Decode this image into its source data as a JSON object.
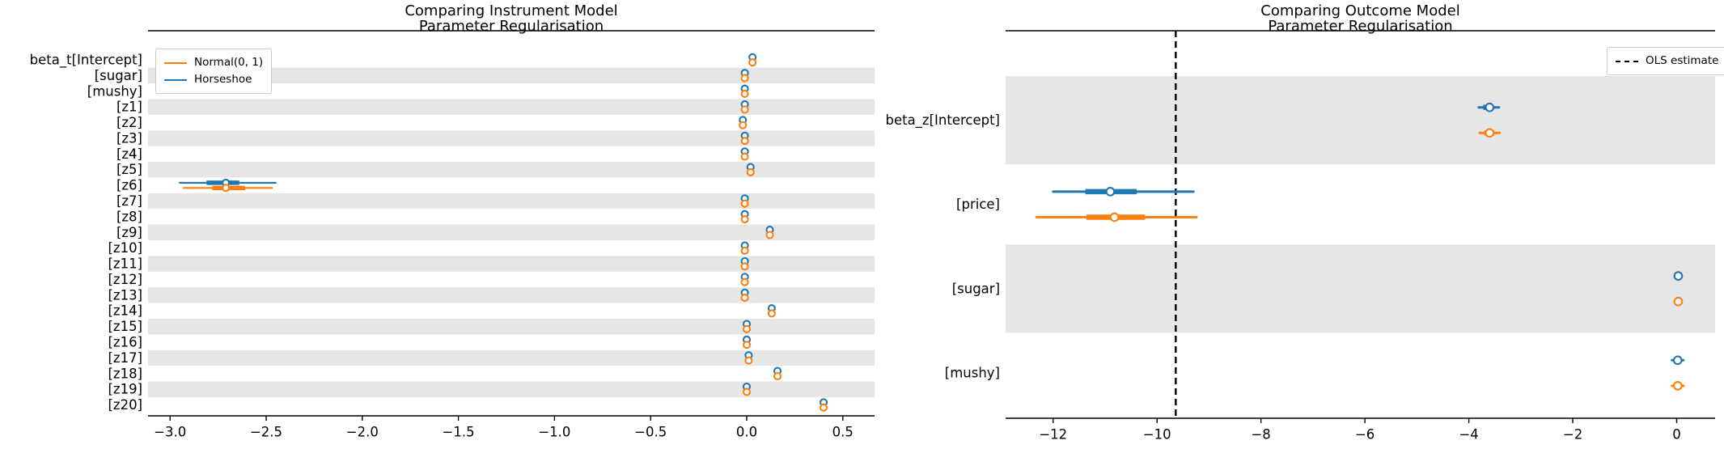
{
  "colors": {
    "horseshoe": "#1f77b4",
    "normal": "#ff7f0e",
    "stripe": "#e6e6e6",
    "spine": "#000000",
    "text": "#000000",
    "ols_line": "#000000",
    "legend_border": "#cccccc"
  },
  "chart_data": [
    {
      "type": "forest",
      "panel": "instrument-model",
      "title_lines": [
        "Comparing Instrument Model",
        "Parameter Regularisation"
      ],
      "legend_position": "upper-left",
      "legend": [
        {
          "label": "Normal(0, 1)",
          "color": "#ff7f0e",
          "style": "solid"
        },
        {
          "label": "Horseshoe",
          "color": "#1f77b4",
          "style": "solid"
        }
      ],
      "xlim": [
        -3.11,
        0.67
      ],
      "grid": "row-stripes",
      "stripe_parity": "odd",
      "xticks": [
        {
          "v": -3.0,
          "label": "−3.0"
        },
        {
          "v": -2.5,
          "label": "−2.5"
        },
        {
          "v": -2.0,
          "label": "−2.0"
        },
        {
          "v": -1.5,
          "label": "−1.5"
        },
        {
          "v": -1.0,
          "label": "−1.0"
        },
        {
          "v": -0.5,
          "label": "−0.5"
        },
        {
          "v": 0.0,
          "label": "0.0"
        },
        {
          "v": 0.5,
          "label": "0.5"
        }
      ],
      "params": [
        "beta_t[Intercept]",
        "[sugar]",
        "[mushy]",
        "[z1]",
        "[z2]",
        "[z3]",
        "[z4]",
        "[z5]",
        "[z6]",
        "[z7]",
        "[z8]",
        "[z9]",
        "[z10]",
        "[z11]",
        "[z12]",
        "[z13]",
        "[z14]",
        "[z15]",
        "[z16]",
        "[z17]",
        "[z18]",
        "[z19]",
        "[z20]"
      ],
      "series": [
        {
          "name": "Horseshoe",
          "color": "#1f77b4",
          "points": [
            {
              "v": 0.03
            },
            {
              "v": -0.01
            },
            {
              "v": -0.01
            },
            {
              "v": -0.01
            },
            {
              "v": -0.02
            },
            {
              "v": -0.01
            },
            {
              "v": -0.01
            },
            {
              "v": 0.02
            },
            {
              "v": -2.71,
              "hdi": [
                -2.95,
                -2.45
              ],
              "iqr": [
                -2.81,
                -2.64
              ]
            },
            {
              "v": -0.01
            },
            {
              "v": -0.01
            },
            {
              "v": 0.12
            },
            {
              "v": -0.01
            },
            {
              "v": -0.01
            },
            {
              "v": -0.01
            },
            {
              "v": -0.01
            },
            {
              "v": 0.13
            },
            {
              "v": 0.0
            },
            {
              "v": 0.0
            },
            {
              "v": 0.01
            },
            {
              "v": 0.16
            },
            {
              "v": 0.0
            },
            {
              "v": 0.4
            }
          ]
        },
        {
          "name": "Normal(0, 1)",
          "color": "#ff7f0e",
          "points": [
            {
              "v": 0.03
            },
            {
              "v": -0.01
            },
            {
              "v": -0.01
            },
            {
              "v": -0.01
            },
            {
              "v": -0.02
            },
            {
              "v": -0.01
            },
            {
              "v": -0.01
            },
            {
              "v": 0.02
            },
            {
              "v": -2.71,
              "hdi": [
                -2.93,
                -2.47
              ],
              "iqr": [
                -2.78,
                -2.61
              ]
            },
            {
              "v": -0.01
            },
            {
              "v": -0.01
            },
            {
              "v": 0.12
            },
            {
              "v": -0.01
            },
            {
              "v": -0.01
            },
            {
              "v": -0.01
            },
            {
              "v": -0.01
            },
            {
              "v": 0.13
            },
            {
              "v": 0.0
            },
            {
              "v": 0.0
            },
            {
              "v": 0.01
            },
            {
              "v": 0.16
            },
            {
              "v": 0.0
            },
            {
              "v": 0.4
            }
          ]
        }
      ]
    },
    {
      "type": "forest",
      "panel": "outcome-model",
      "title_lines": [
        "Comparing Outcome Model",
        "Parameter Regularisation"
      ],
      "legend_position": "upper-right",
      "legend": [
        {
          "label": "OLS estimate",
          "color": "#000000",
          "style": "dashed"
        }
      ],
      "xlim": [
        -12.9,
        0.75
      ],
      "grid": "row-stripes",
      "stripe_parity": "even",
      "ols_estimate": -9.64,
      "xticks": [
        {
          "v": -12,
          "label": "−12"
        },
        {
          "v": -10,
          "label": "−10"
        },
        {
          "v": -8,
          "label": "−8"
        },
        {
          "v": -6,
          "label": "−6"
        },
        {
          "v": -4,
          "label": "−4"
        },
        {
          "v": -2,
          "label": "−2"
        },
        {
          "v": 0,
          "label": "0"
        }
      ],
      "params": [
        "beta_z[Intercept]",
        "[price]",
        "[sugar]",
        "[mushy]"
      ],
      "series": [
        {
          "name": "Horseshoe",
          "color": "#1f77b4",
          "points": [
            {
              "v": -3.6,
              "hdi": [
                -3.81,
                -3.42
              ],
              "iqr": [
                -3.72,
                -3.53
              ]
            },
            {
              "v": -10.9,
              "hdi": [
                -12.0,
                -9.3
              ],
              "iqr": [
                -11.38,
                -10.39
              ]
            },
            {
              "v": 0.03
            },
            {
              "v": 0.02,
              "hdi": [
                -0.09,
                0.13
              ]
            }
          ]
        },
        {
          "name": "Normal(0, 1)",
          "color": "#ff7f0e",
          "points": [
            {
              "v": -3.6,
              "hdi": [
                -3.79,
                -3.41
              ],
              "iqr": [
                -3.7,
                -3.51
              ]
            },
            {
              "v": -10.82,
              "hdi": [
                -12.32,
                -9.24
              ],
              "iqr": [
                -11.36,
                -10.23
              ]
            },
            {
              "v": 0.03
            },
            {
              "v": 0.02,
              "hdi": [
                -0.09,
                0.13
              ]
            }
          ]
        }
      ]
    }
  ]
}
